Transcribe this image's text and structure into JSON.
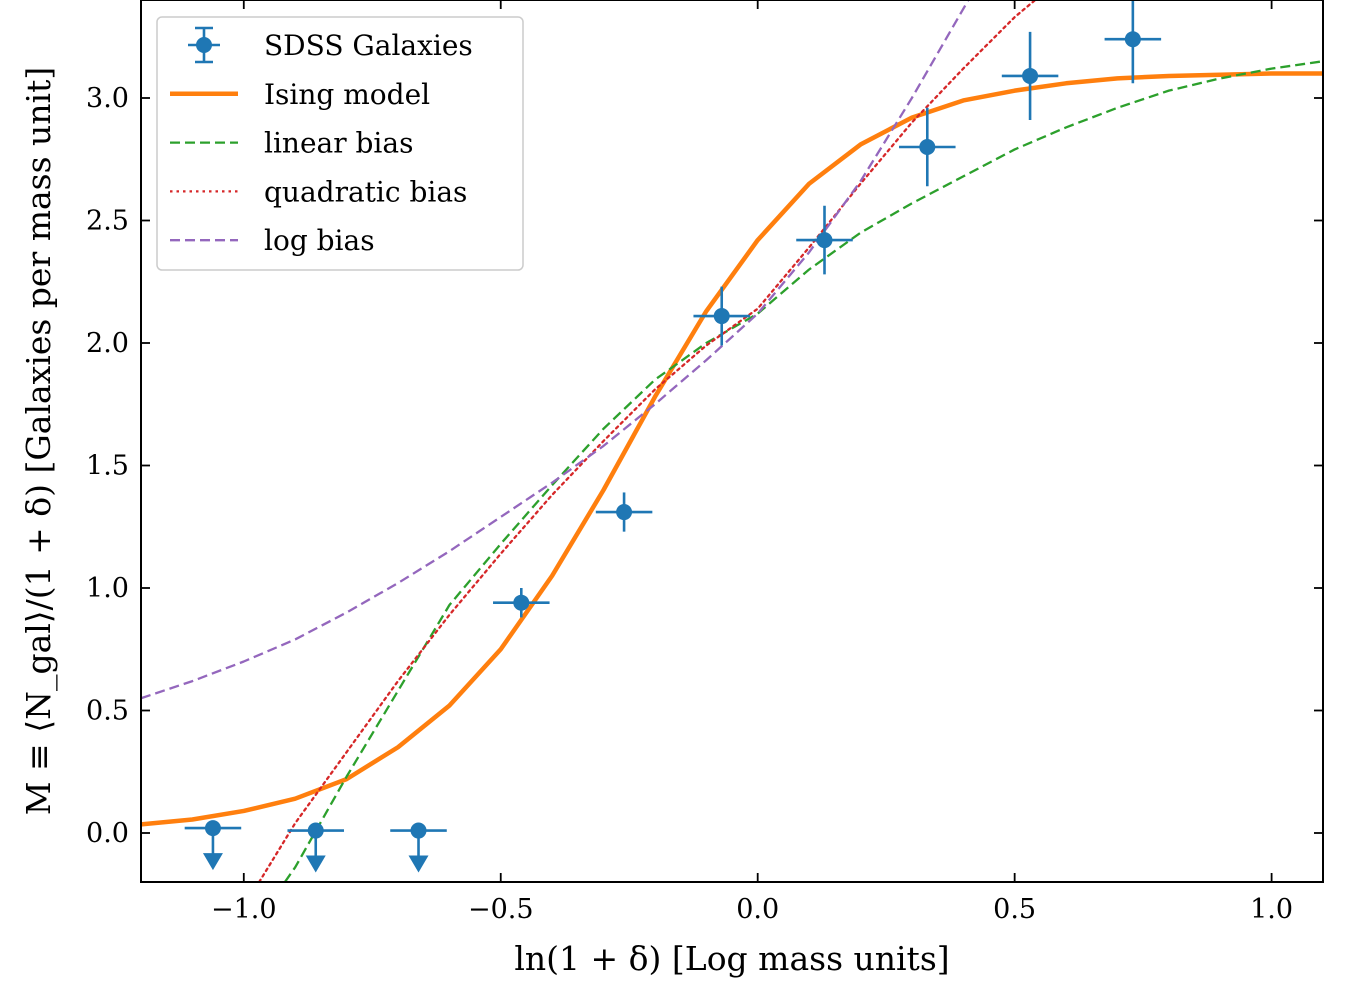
{
  "chart_data": {
    "type": "scatter",
    "xlabel": "ln(1 + δ) [Log mass units]",
    "ylabel": "M ≡ ⟨N_gal⟩/(1 + δ) [Galaxies per mass unit]",
    "xlim": [
      -1.2,
      1.1
    ],
    "ylim": [
      -0.2,
      3.4
    ],
    "x_ticks": [
      -1.0,
      -0.5,
      0.0,
      0.5,
      1.0
    ],
    "x_tick_labels": [
      "−1.0",
      "−0.5",
      "0.0",
      "0.5",
      "1.0"
    ],
    "y_ticks": [
      0.0,
      0.5,
      1.0,
      1.5,
      2.0,
      2.5,
      3.0
    ],
    "y_tick_labels": [
      "0.0",
      "0.5",
      "1.0",
      "1.5",
      "2.0",
      "2.5",
      "3.0"
    ],
    "grid": false,
    "legend_position": "top-left",
    "series": [
      {
        "name": "SDSS Galaxies",
        "kind": "errorbar",
        "color": "#1f77b4",
        "x": [
          -1.06,
          -0.86,
          -0.66,
          -0.46,
          -0.26,
          -0.07,
          0.13,
          0.33,
          0.53,
          0.73
        ],
        "y": [
          0.02,
          0.01,
          0.01,
          0.94,
          1.31,
          2.11,
          2.42,
          2.8,
          3.09,
          3.24
        ],
        "xerr": [
          0.055,
          0.055,
          0.055,
          0.055,
          0.055,
          0.055,
          0.055,
          0.055,
          0.055,
          0.055
        ],
        "yerr_low": [
          0,
          0,
          0,
          0.06,
          0.08,
          0.12,
          0.14,
          0.16,
          0.18,
          0.18
        ],
        "yerr_high": [
          0,
          0,
          0,
          0.06,
          0.08,
          0.12,
          0.14,
          0.16,
          0.18,
          0.18
        ],
        "upper_limit": [
          true,
          true,
          true,
          false,
          false,
          false,
          false,
          false,
          false,
          false
        ]
      },
      {
        "name": "Ising model",
        "kind": "line",
        "style": "solid",
        "color": "#ff7f0e",
        "x": [
          -1.2,
          -1.1,
          -1.0,
          -0.9,
          -0.8,
          -0.7,
          -0.6,
          -0.5,
          -0.4,
          -0.3,
          -0.2,
          -0.1,
          0.0,
          0.1,
          0.2,
          0.3,
          0.4,
          0.5,
          0.6,
          0.7,
          0.8,
          0.9,
          1.0,
          1.1
        ],
        "y": [
          0.035,
          0.055,
          0.09,
          0.14,
          0.22,
          0.35,
          0.52,
          0.75,
          1.05,
          1.4,
          1.78,
          2.13,
          2.42,
          2.65,
          2.81,
          2.92,
          2.99,
          3.03,
          3.06,
          3.08,
          3.09,
          3.095,
          3.1,
          3.1
        ]
      },
      {
        "name": "linear bias",
        "kind": "line",
        "style": "dashed",
        "color": "#2ca02c",
        "x": [
          -0.92,
          -0.9,
          -0.8,
          -0.7,
          -0.6,
          -0.5,
          -0.4,
          -0.3,
          -0.2,
          -0.1,
          0.0,
          0.1,
          0.2,
          0.3,
          0.4,
          0.5,
          0.6,
          0.7,
          0.8,
          0.9,
          1.0,
          1.1
        ],
        "y": [
          -0.2,
          -0.14,
          0.23,
          0.58,
          0.93,
          1.18,
          1.42,
          1.65,
          1.85,
          2.0,
          2.12,
          2.3,
          2.45,
          2.57,
          2.68,
          2.79,
          2.88,
          2.96,
          3.03,
          3.08,
          3.12,
          3.15
        ]
      },
      {
        "name": "quadratic bias",
        "kind": "line",
        "style": "dotted",
        "color": "#d62728",
        "x": [
          -0.97,
          -0.9,
          -0.8,
          -0.7,
          -0.6,
          -0.5,
          -0.4,
          -0.3,
          -0.2,
          -0.1,
          0.0,
          0.1,
          0.2,
          0.3,
          0.4,
          0.5,
          0.54
        ],
        "y": [
          -0.2,
          0.04,
          0.33,
          0.62,
          0.89,
          1.14,
          1.38,
          1.6,
          1.81,
          1.99,
          2.14,
          2.39,
          2.65,
          2.9,
          3.12,
          3.33,
          3.4
        ]
      },
      {
        "name": "log bias",
        "kind": "line",
        "style": "dashed",
        "color": "#9467bd",
        "x": [
          -1.2,
          -1.1,
          -1.0,
          -0.9,
          -0.8,
          -0.7,
          -0.6,
          -0.5,
          -0.4,
          -0.3,
          -0.2,
          -0.1,
          0.0,
          0.1,
          0.2,
          0.3,
          0.41
        ],
        "y": [
          0.55,
          0.62,
          0.7,
          0.79,
          0.9,
          1.02,
          1.15,
          1.29,
          1.43,
          1.58,
          1.75,
          1.93,
          2.12,
          2.37,
          2.66,
          3.0,
          3.4
        ]
      }
    ]
  }
}
